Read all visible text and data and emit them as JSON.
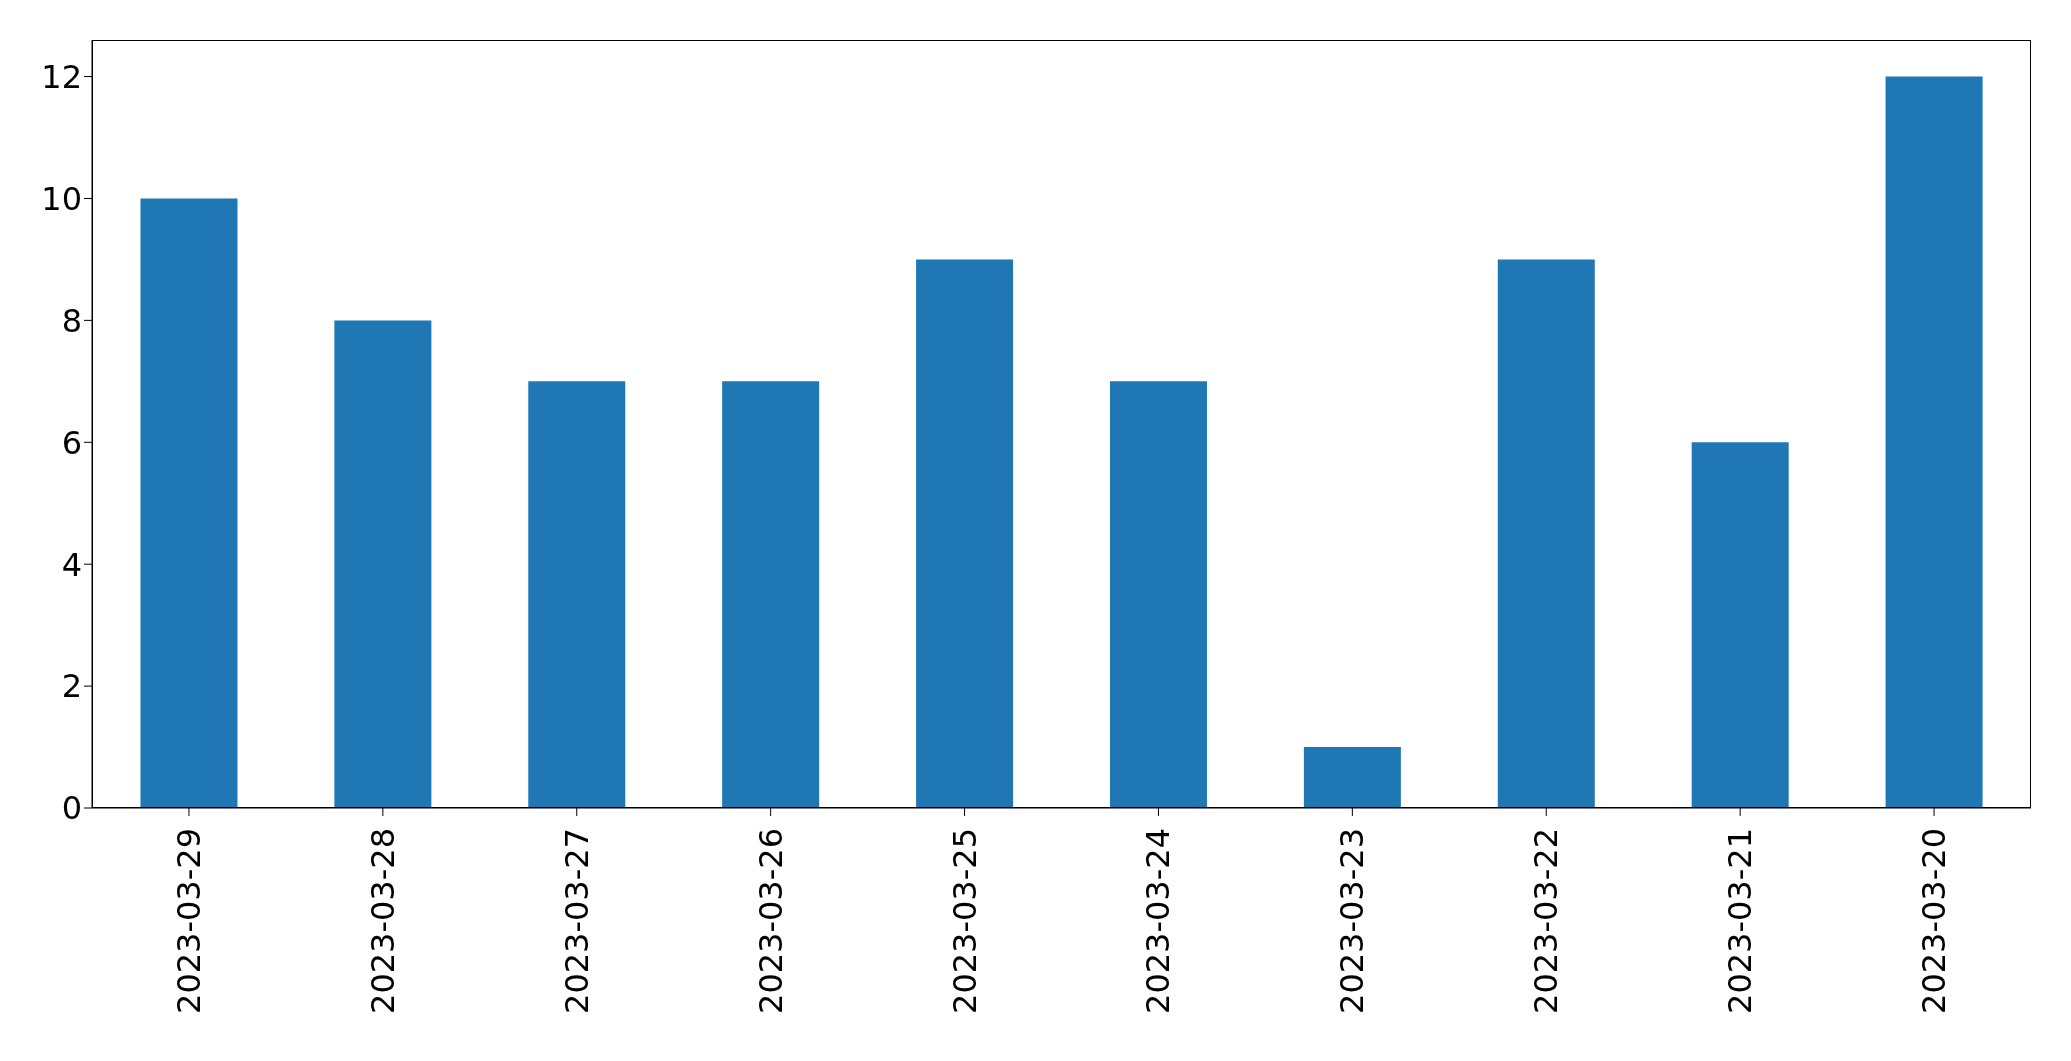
{
  "chart_data": {
    "type": "bar",
    "categories": [
      "2023-03-29",
      "2023-03-28",
      "2023-03-27",
      "2023-03-26",
      "2023-03-25",
      "2023-03-24",
      "2023-03-23",
      "2023-03-22",
      "2023-03-21",
      "2023-03-20"
    ],
    "values": [
      10,
      8,
      7,
      7,
      9,
      7,
      1,
      9,
      6,
      12
    ],
    "color": "#1f77b4",
    "ylim": [
      0,
      12.6
    ],
    "yticks": [
      0,
      2,
      4,
      6,
      8,
      10,
      12
    ],
    "grid": false
  }
}
